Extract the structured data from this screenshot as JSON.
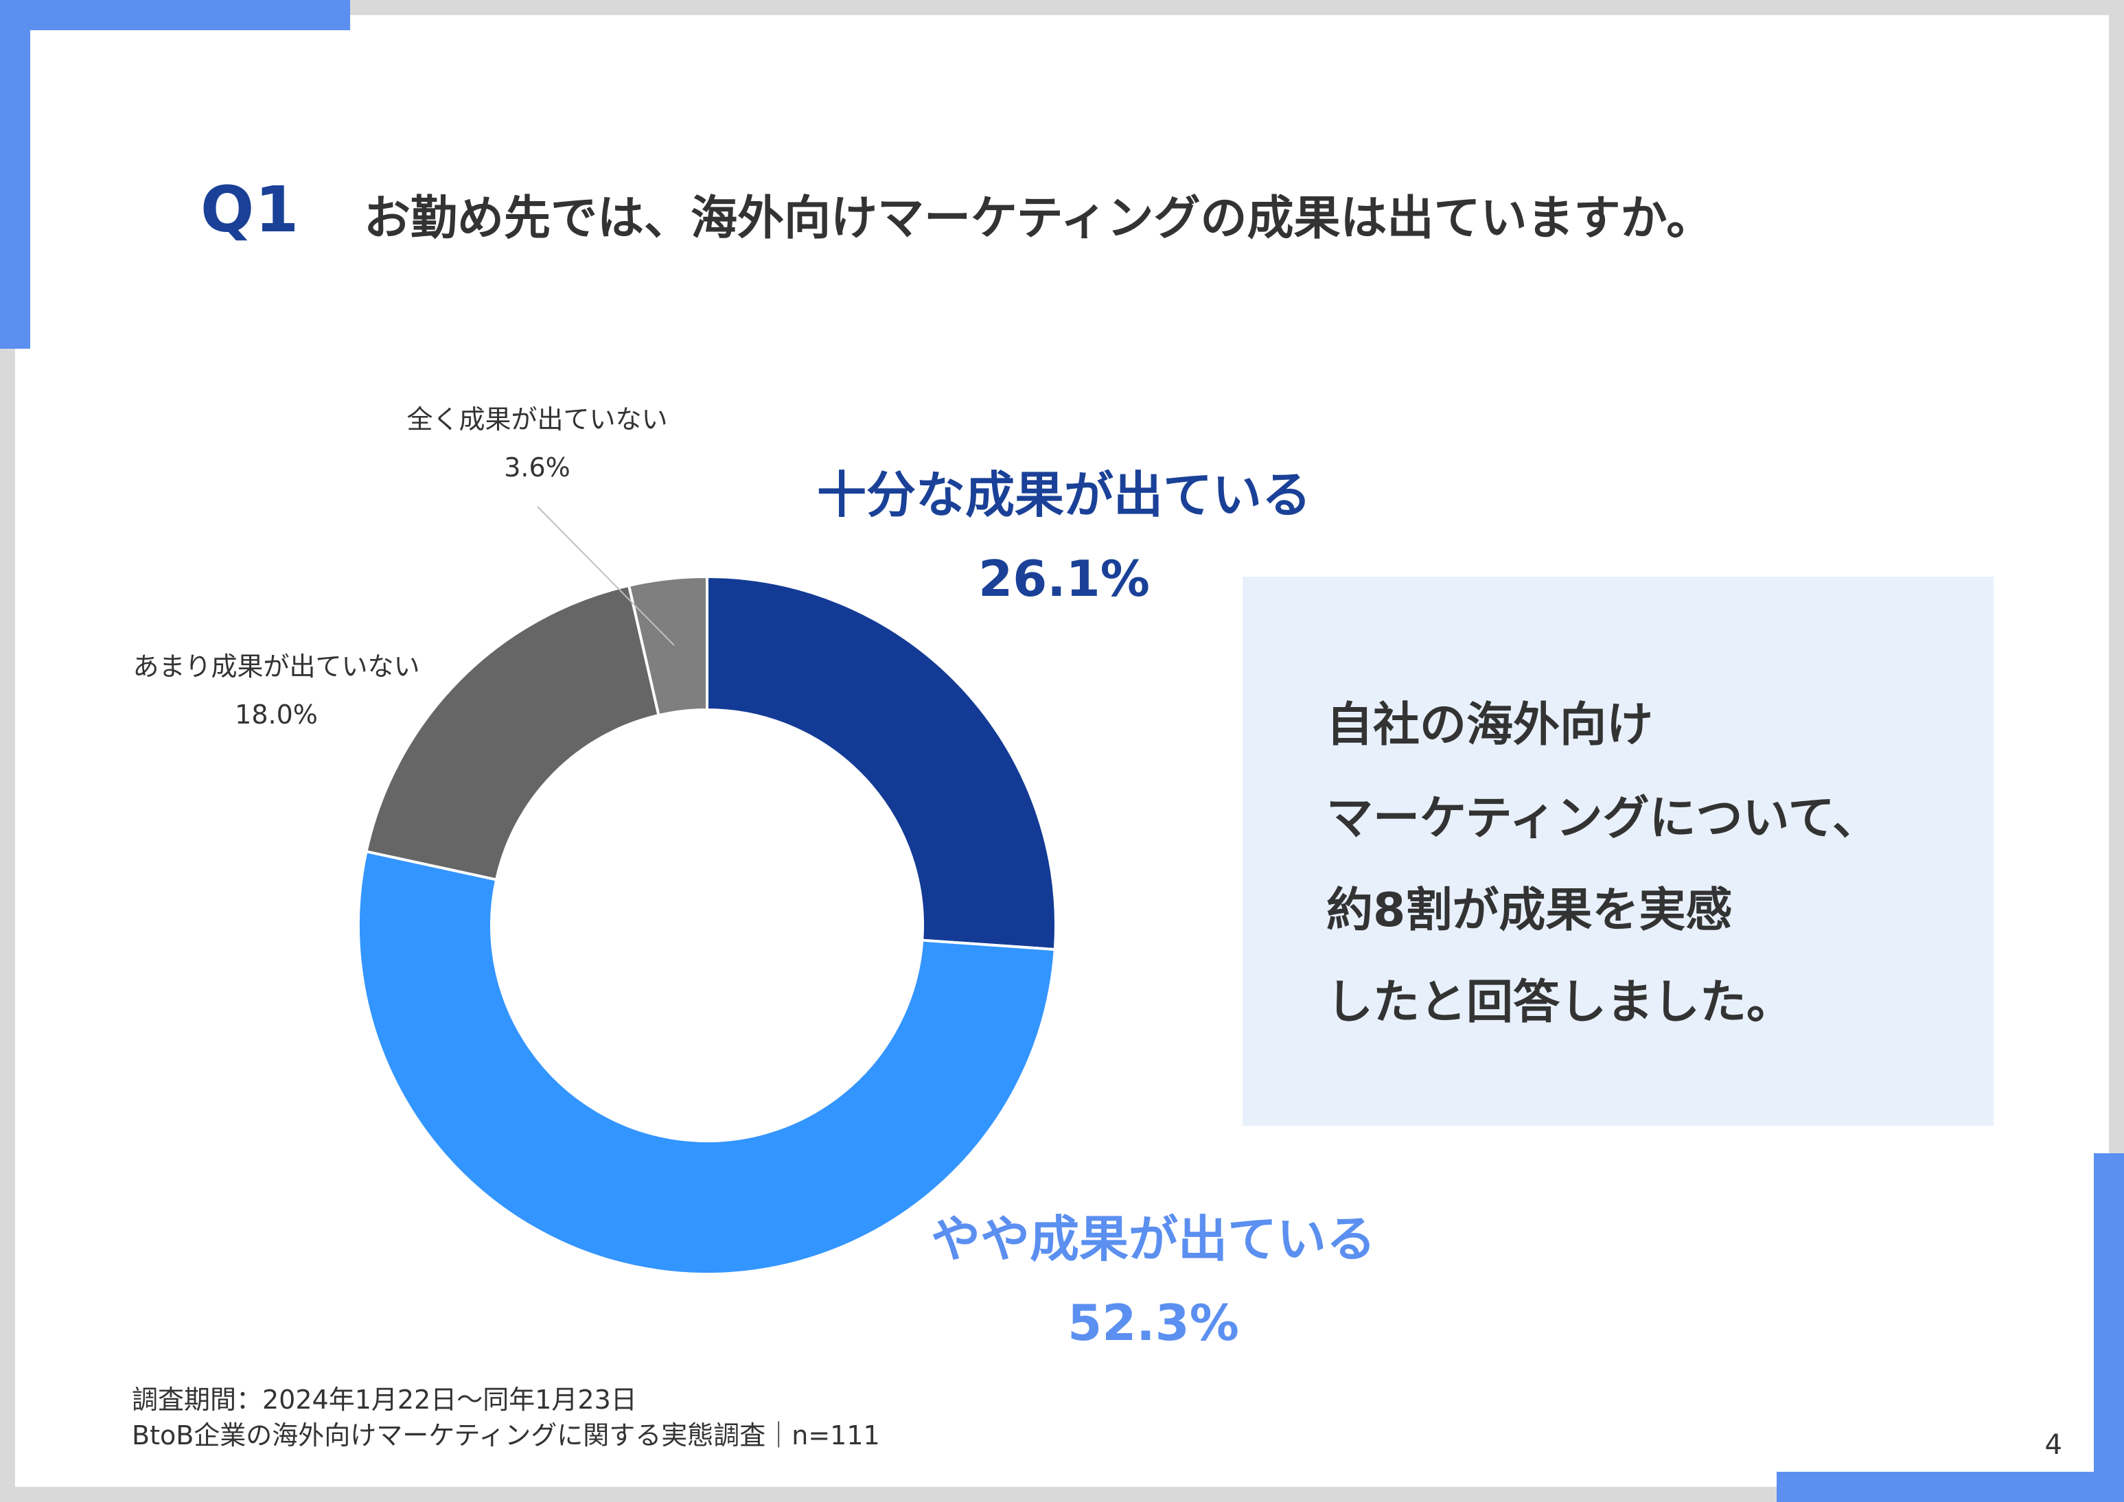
{
  "question": {
    "number": "Q1",
    "title": "お勤め先では、海外向けマーケティングの成果は出ていますか。"
  },
  "chart_data": {
    "type": "pie",
    "categories": [
      "十分な成果が出ている",
      "やや成果が出ている",
      "あまり成果が出ていない",
      "全く成果が出ていない"
    ],
    "values": [
      26.1,
      52.3,
      18.0,
      3.6
    ],
    "labels": [
      "26.1%",
      "52.3%",
      "18.0%",
      "3.6%"
    ],
    "colors": [
      "#133b96",
      "#3395ff",
      "#666666",
      "#7f7f7f"
    ],
    "donut": true,
    "start": "12 o'clock, clockwise",
    "legend": "none"
  },
  "callout": {
    "lines": [
      "自社の海外向け",
      "マーケティングについて、",
      "約8割が成果を実感",
      "したと回答しました。"
    ]
  },
  "footer": {
    "period": "調査期間：2024年1月22日～同年1月23日",
    "survey": "BtoB企業の海外向けマーケティングに関する実態調査｜n=111"
  },
  "page_number": "4"
}
